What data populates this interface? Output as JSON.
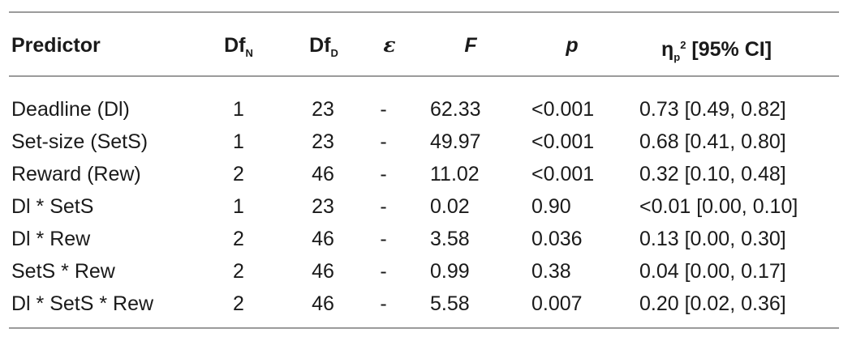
{
  "headers": {
    "predictor": "Predictor",
    "dfn_main": "Df",
    "dfn_sub": "N",
    "dfd_main": "Df",
    "dfd_sub": "D",
    "epsilon": "ε",
    "f": "F",
    "p": "p",
    "eta_main": "η",
    "eta_sub": "p",
    "eta_sup": "2",
    "eta_rest": " [95% CI]"
  },
  "rows": [
    {
      "predictor": "Deadline (Dl)",
      "dfn": "1",
      "dfd": "23",
      "eps": "-",
      "f": "62.33",
      "p": "<0.001",
      "eta": "0.73 [0.49, 0.82]"
    },
    {
      "predictor": "Set-size (SetS)",
      "dfn": "1",
      "dfd": "23",
      "eps": "-",
      "f": "49.97",
      "p": "<0.001",
      "eta": "0.68 [0.41, 0.80]"
    },
    {
      "predictor": "Reward (Rew)",
      "dfn": "2",
      "dfd": "46",
      "eps": "-",
      "f": "11.02",
      "p": "<0.001",
      "eta": "0.32 [0.10, 0.48]"
    },
    {
      "predictor": "Dl * SetS",
      "dfn": "1",
      "dfd": "23",
      "eps": "-",
      "f": "0.02",
      "p": "0.90",
      "eta": "<0.01 [0.00, 0.10]"
    },
    {
      "predictor": "Dl * Rew",
      "dfn": "2",
      "dfd": "46",
      "eps": "-",
      "f": "3.58",
      "p": "0.036",
      "eta": "0.13 [0.00, 0.30]"
    },
    {
      "predictor": "SetS * Rew",
      "dfn": "2",
      "dfd": "46",
      "eps": "-",
      "f": "0.99",
      "p": "0.38",
      "eta": "0.04 [0.00, 0.17]"
    },
    {
      "predictor": "Dl * SetS * Rew",
      "dfn": "2",
      "dfd": "46",
      "eps": "-",
      "f": "5.58",
      "p": "0.007",
      "eta": "0.20 [0.02, 0.36]"
    }
  ]
}
